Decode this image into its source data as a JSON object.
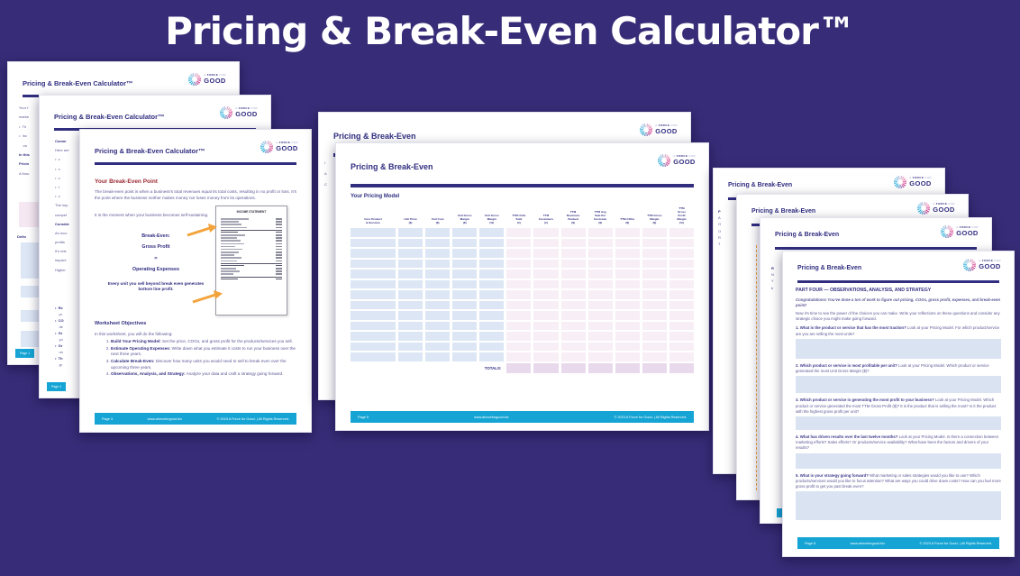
{
  "main_title": "Pricing & Break-Even Calculator™",
  "brand": {
    "prefix": "A",
    "force": "FORCE",
    "suffix": "FOR",
    "good": "GOOD"
  },
  "colors": {
    "background": "#372c77",
    "page_navy": "#312e80",
    "accent_red": "#9c2a33",
    "body_text": "#5b5796",
    "footer_cyan": "#15a4d4",
    "table_blue": "#dce6f4",
    "table_pink": "#f7eef6",
    "totals_pink": "#e9d9ec",
    "answer_blue": "#d9e3f2",
    "arrow_orange": "#f2a33c",
    "logo_cyan": "#39b7dd",
    "logo_pink": "#d4509a"
  },
  "footer": {
    "url": "www.aforceforgood.biz",
    "copyright": "© 2023 A Force for Good. | All Rights Reserved."
  },
  "pages": {
    "p1": {
      "header": "Pricing & Break-Even Calculator™",
      "page_num": "Page 1",
      "fragments": [
        {
          "t": "Your f"
        },
        {
          "t": "marke"
        },
        {
          "t": "•  Th"
        },
        {
          "t": "•  Inc"
        },
        {
          "t": "    va"
        },
        {
          "t": "In this",
          "b": 1
        },
        {
          "t": "Pricin",
          "b": 1
        },
        {
          "t": "A thou"
        }
      ],
      "defin_label": "Defin"
    },
    "p2": {
      "header": "Pricing & Break-Even Calculator™",
      "page_num": "Page 2",
      "fragments": [
        {
          "t": "Comm",
          "b": 1
        },
        {
          "t": "Here are"
        },
        {
          "t": "•  c"
        },
        {
          "t": "•  v"
        },
        {
          "t": "•  c"
        },
        {
          "t": "•  t"
        },
        {
          "t": "•  c"
        },
        {
          "t": "The imp"
        },
        {
          "t": "compet"
        },
        {
          "t": "Conside",
          "b": 1
        },
        {
          "t": "An inco"
        },
        {
          "t": "profits"
        },
        {
          "t": "It's rele"
        },
        {
          "t": "impact:"
        },
        {
          "t": "Higher"
        }
      ],
      "fragments2": [
        {
          "t": "•  Re",
          "b": 1
        },
        {
          "t": "    pr"
        },
        {
          "t": "•  CO",
          "b": 1
        },
        {
          "t": "    de"
        },
        {
          "t": "•  Gr",
          "b": 1
        },
        {
          "t": "    yo"
        },
        {
          "t": "•  Gr",
          "b": 1
        },
        {
          "t": "    on"
        },
        {
          "t": "•  Th",
          "b": 1
        },
        {
          "t": "    gr"
        }
      ]
    },
    "p3": {
      "header": "Pricing & Break-Even Calculator™",
      "page_num": "Page 3",
      "heading": "Your Break-Even Point",
      "para1": "The break-even point is when a business's total revenues equal its total costs, resulting in no profit or loss. It's the point where the business neither makes money nor loses money from its operations.",
      "para2": "It is the moment when your business becomes self-sustaining.",
      "breakeven_lines": [
        "Break-Even:",
        "Gross Profit",
        "=",
        "Operating Expenses"
      ],
      "breakeven_note": "Every unit you sell beyond break even generates bottom line profit.",
      "income_title": "INCOME STATEMENT",
      "objectives_heading": "Worksheet Objectives",
      "objectives_intro": "In this worksheet, you will do the following:",
      "objectives": [
        {
          "b": "Build Your Pricing Model:",
          "t": " Set the price, COGs, and gross profit for the products/services you sell."
        },
        {
          "b": "Estimate Operating Expenses:",
          "t": " Write down what you estimate it costs to run your business over the next three years."
        },
        {
          "b": "Calculate Break-Even:",
          "t": " Discover how many units you would need to sell to break even over the upcoming three years."
        },
        {
          "b": "Observations, Analysis, and Strategy:",
          "t": " Analyze your data and craft a strategy going forward."
        }
      ]
    },
    "p4": {
      "header": "Pricing & Break-Even",
      "fragments": [
        {
          "t": "I"
        },
        {
          "t": "A"
        },
        {
          "t": "C"
        }
      ]
    },
    "p5": {
      "header": "Pricing & Break-Even",
      "page_num": "Page 5",
      "heading": "Your Pricing Model",
      "columns": [
        "Core Product\n& Services",
        "Unit Price\n($)",
        "Unit Cost\n($)",
        "Unit Gross\nMargin\n($)",
        "Unit Gross\nMargin\n(%)",
        "TTM Units\nSold\n(#)",
        "TTM\nCustomers\n(#)",
        "TTM\nRevenues\nBooked\n($)",
        "TTM Avg\nSale Per\nCustomer\n($)",
        "TTM COGs\n($)",
        "TTM Gross\nMargin\n($)",
        "TTM\nGross\nProfit\nMargin\n(%)"
      ],
      "row_count": 13,
      "blue_col_count": 5,
      "totals_label": "TOTALS:",
      "totals_cell_count": 7
    },
    "p6": {
      "header": "Pricing & Break-Even",
      "fragments": [
        {
          "t": "P",
          "b": 1
        },
        {
          "t": "A"
        },
        {
          "t": "O"
        },
        {
          "t": "O"
        },
        {
          "t": "R"
        },
        {
          "t": ""
        },
        {
          "t": "T"
        }
      ]
    },
    "p7": {
      "header": "Pricing & Break-Even",
      "fragments": []
    },
    "p7b": {
      "header": "Pricing & Break-Even",
      "fragments": [
        {
          "t": "R",
          "b": 1
        },
        {
          "t": "N"
        },
        {
          "t": "Y"
        },
        {
          "t": "b"
        }
      ]
    },
    "p8": {
      "header": "Pricing & Break-Even",
      "page_num": "Page 8",
      "part_heading": "PART FOUR — OBSERVATIONS, ANALYSIS, AND STRATEGY",
      "congrats": "Congratulations!  You've done a ton of work to figure out pricing, COGs, gross profit, expenses, and break-even point!",
      "intro": "Now it's time to see the power of the choices you can make.  Write your reflections on these questions and consider any strategic choice you might make going forward.",
      "questions": [
        {
          "q": "1. What is the product or service that has the most traction?",
          "t": "  Look at your Pricing Model.  For which product/service are you are selling the most units?",
          "h": 22
        },
        {
          "q": "2. Which product or service is most profitable per unit?",
          "t": "  Look at your Pricing Model.  Which product or service generated the most Unit Gross Margin ($)?",
          "h": 19
        },
        {
          "q": "3. Which product or service is generating the most profit to your business?",
          "t": "  Look at your Pricing Model.  Which product or service generated the most TTM Gross Profit ($)?  It is the product that is selling the most? Is it the product with the highest gross profit per unit?",
          "h": 15
        },
        {
          "q": "4. What has driven results over the last twelve months?",
          "t": "  Look at your Pricing Model.  Is there a connection between marketing efforts? Sales efforts? Or products/service availability?  What have been the factors and drivers of your results?",
          "h": 17
        },
        {
          "q": "5. What is your strategy going forward?",
          "t": "  What marketing or sales strategies would you like to use? Which products/services would you like to focus attention?  What are ways you could drive down costs?  How can you fuel more gross profit to get you past break even?",
          "h": 32
        }
      ]
    }
  }
}
